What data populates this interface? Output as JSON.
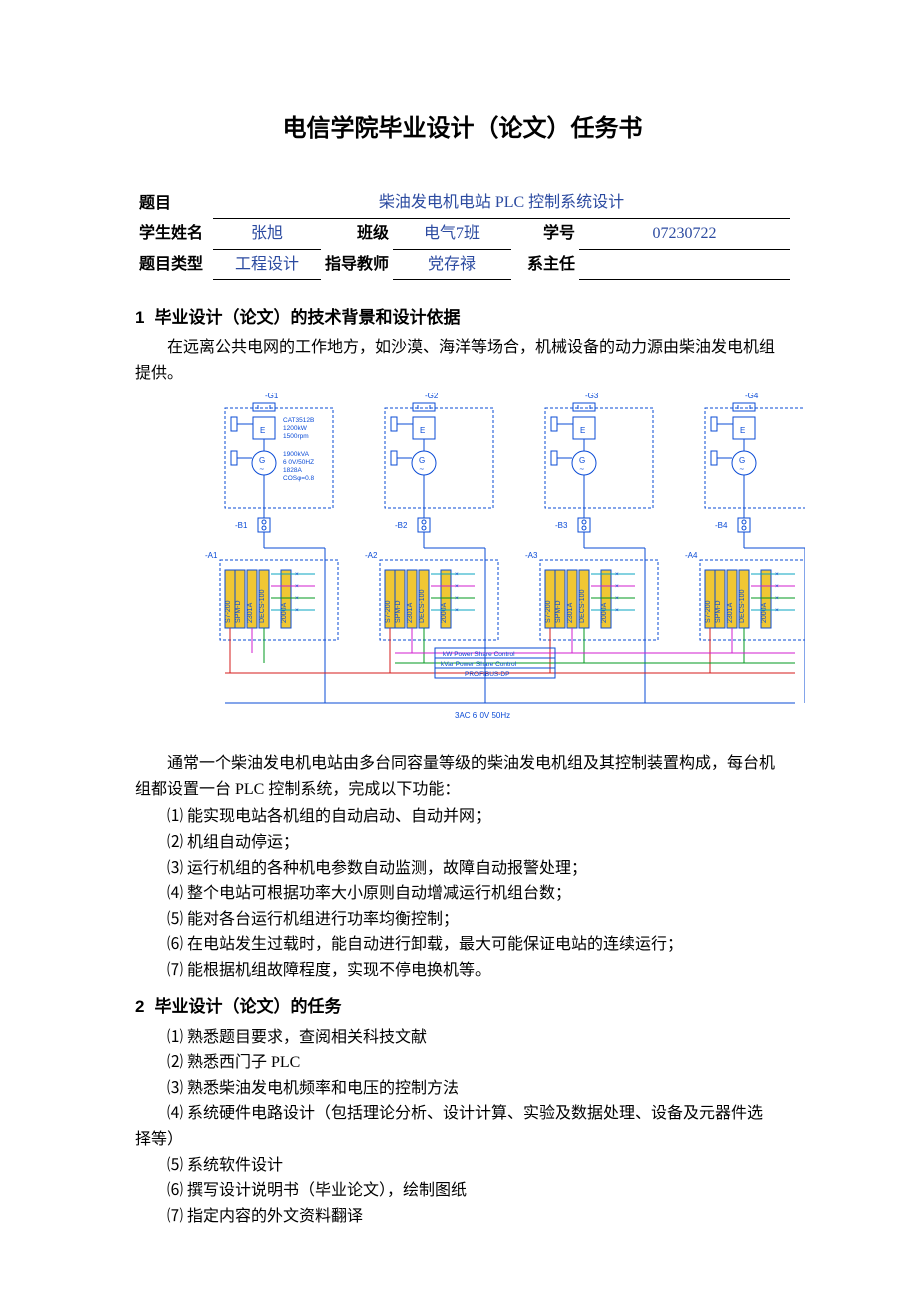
{
  "title": "电信学院毕业设计（论文）任务书",
  "meta": {
    "row1": {
      "label_topic": "题目",
      "topic": "柴油发电机电站 PLC 控制系统设计"
    },
    "row2": {
      "label_name": "学生姓名",
      "name": "张旭",
      "label_class": "班级",
      "class_": "电气7班",
      "label_id": "学号",
      "id": "07230722"
    },
    "row3": {
      "label_type": "题目类型",
      "type": "工程设计",
      "label_advisor": "指导教师",
      "advisor": "党存禄",
      "label_head": "系主任",
      "head": ""
    }
  },
  "section1": {
    "num": "1",
    "title": "毕业设计（论文）的技术背景和设计依据",
    "intro": "在远离公共电网的工作地方，如沙漠、海洋等场合，机械设备的动力源由柴油发电机组提供。",
    "after_diag": "通常一个柴油发电机电站由多台同容量等级的柴油发电机组及其控制装置构成，每台机组都设置一台 PLC 控制系统，完成以下功能：",
    "items": [
      "⑴ 能实现电站各机组的自动启动、自动并网；",
      "⑵ 机组自动停运；",
      "⑶ 运行机组的各种机电参数自动监测，故障自动报警处理；",
      "⑷ 整个电站可根据功率大小原则自动增减运行机组台数；",
      "⑸ 能对各台运行机组进行功率均衡控制；",
      "⑹ 在电站发生过载时，能自动进行卸载，最大可能保证电站的连续运行；",
      "⑺ 能根据机组故障程度，实现不停电换机等。"
    ]
  },
  "section2": {
    "num": "2",
    "title": "毕业设计（论文）的任务",
    "items": [
      "⑴ 熟悉题目要求，查阅相关科技文献",
      "⑵ 熟悉西门子 PLC",
      "⑶ 熟悉柴油发电机频率和电压的控制方法",
      "⑷ 系统硬件电路设计（包括理论分析、设计计算、实验及数据处理、设备及元器件选择等）",
      "⑸ 系统软件设计",
      "⑹ 撰写设计说明书（毕业论文），绘制图纸",
      "⑺ 指定内容的外文资料翻译"
    ]
  },
  "diagram": {
    "units": [
      "-G1",
      "-G2",
      "-G3",
      "-G4"
    ],
    "panels": [
      "-A1",
      "-A2",
      "-A3",
      "-A4"
    ],
    "breakers": [
      "-B1",
      "-B2",
      "-B3",
      "-B4"
    ],
    "engine_spec": [
      "CAT3512B",
      "1200kW",
      "1500rpm"
    ],
    "gen_spec": [
      "1900kVA",
      "6  0V/50HZ",
      "1828A",
      "COSφ=0.8"
    ],
    "ctrl_labels": [
      "S7-200",
      "SPM-D",
      "2301A",
      "DECS-100",
      "2000A"
    ],
    "bus_labels": [
      "kW Power Share Control",
      "kVar Power Share Control",
      "PROFIBUS-DP"
    ],
    "bus_bottom": "3AC  6  0V  50Hz",
    "colors": {
      "blue": "#0a4bd6",
      "mag": "#d11ecf",
      "green": "#009a1f",
      "red": "#d41b1b",
      "cyan": "#0aa6c2",
      "yellow": "#f0c733"
    }
  }
}
